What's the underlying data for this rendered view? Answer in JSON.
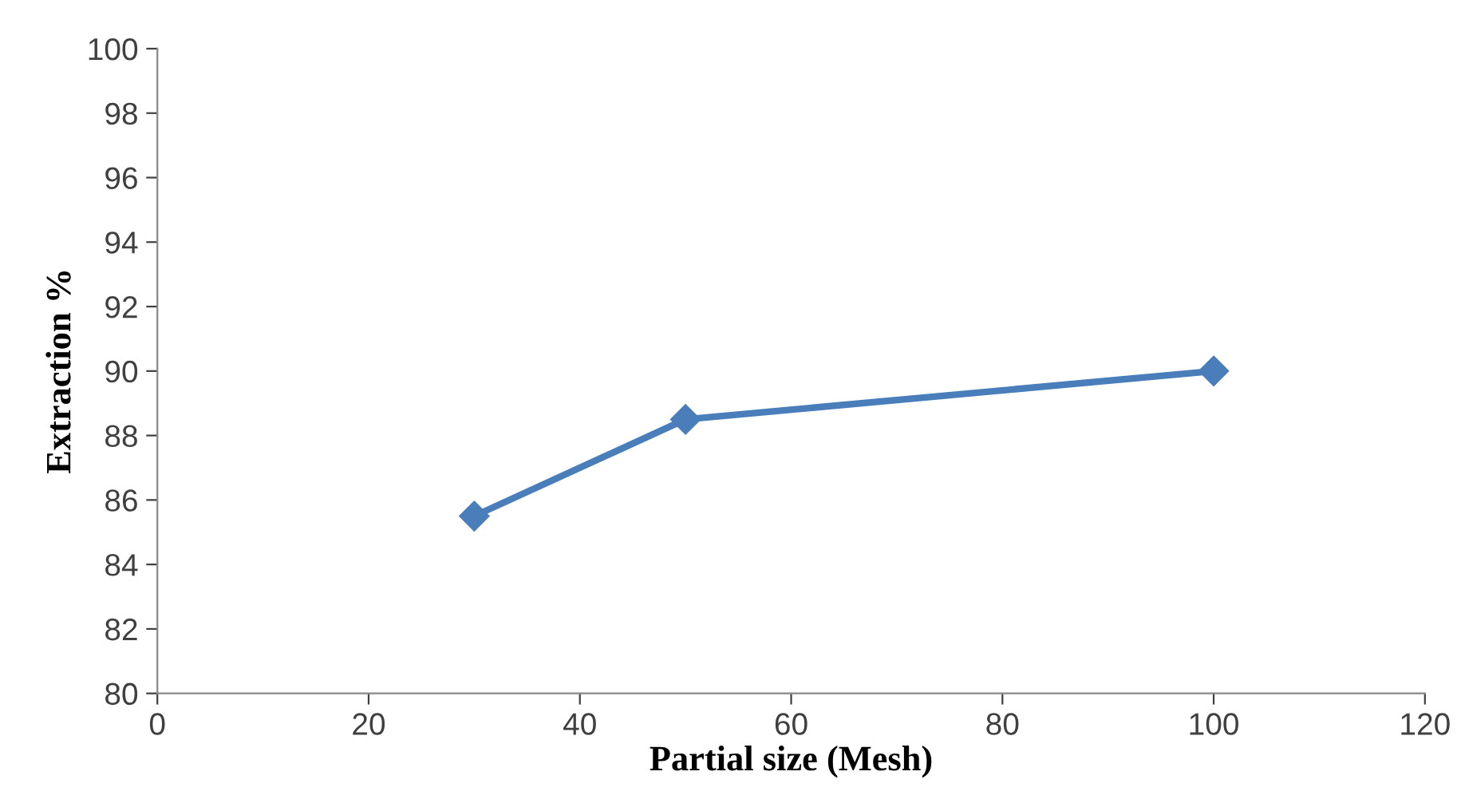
{
  "chart_data": {
    "type": "line",
    "xlabel": "Partial size (Mesh)",
    "ylabel": "Extraction %",
    "x": [
      30,
      50,
      100
    ],
    "series": [
      {
        "color": "#4a7ebb",
        "values": [
          85.5,
          88.5,
          90
        ]
      }
    ],
    "xlim": [
      0,
      120
    ],
    "xticks": [
      0,
      20,
      40,
      60,
      80,
      100,
      120
    ],
    "ylim": [
      80,
      100
    ],
    "yticks": [
      80,
      82,
      84,
      86,
      88,
      90,
      92,
      94,
      96,
      98,
      100
    ],
    "grid": false,
    "legend": false,
    "marker": "diamond",
    "line_style": "solid"
  }
}
